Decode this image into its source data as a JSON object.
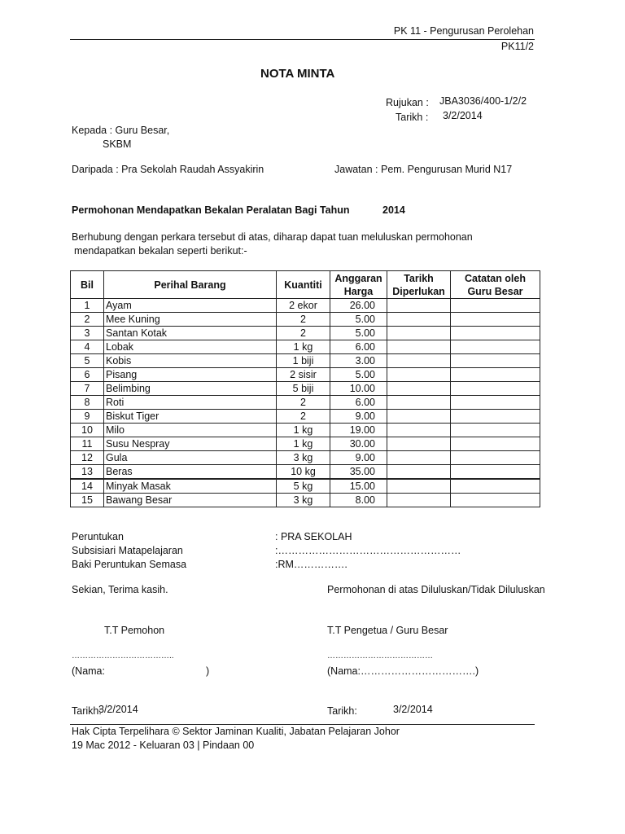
{
  "header": {
    "line1": "PK 11 - Pengurusan Perolehan",
    "line2": "PK11/2"
  },
  "title": "NOTA MINTA",
  "ref": {
    "rujukan_label": "Rujukan :",
    "rujukan": "JBA3036/400-1/2/2",
    "tarikh_label": "Tarikh :",
    "tarikh": "3/2/2014"
  },
  "kepada": {
    "line1": "Kepada : Guru Besar,",
    "line2": "SKBM"
  },
  "daripada": "Daripada : Pra Sekolah Raudah Assyakirin",
  "jawatan": "Jawatan : Pem. Pengurusan Murid N17",
  "subject": {
    "text": "Permohonan Mendapatkan Bekalan Peralatan Bagi Tahun",
    "year": "2014"
  },
  "intro": {
    "line1": "Berhubung dengan perkara tersebut di atas, diharap dapat tuan meluluskan permohonan",
    "line2": "mendapatkan bekalan seperti berikut:-"
  },
  "table": {
    "headers": {
      "bil": "Bil",
      "perihal": "Perihal Barang",
      "kuantiti": "Kuantiti",
      "anggaran1": "Anggaran",
      "anggaran2": "Harga",
      "tarikh1": "Tarikh",
      "tarikh2": "Diperlukan",
      "catatan1": "Catatan oleh",
      "catatan2": "Guru Besar"
    },
    "rows": [
      [
        "1",
        "Ayam",
        "2 ekor",
        "26.00"
      ],
      [
        "2",
        "Mee Kuning",
        "2",
        "5.00"
      ],
      [
        "3",
        "Santan Kotak",
        "2",
        "5.00"
      ],
      [
        "4",
        "Lobak",
        "1 kg",
        "6.00"
      ],
      [
        "5",
        "Kobis",
        "1 biji",
        "3.00"
      ],
      [
        "6",
        "Pisang",
        "2 sisir",
        "5.00"
      ],
      [
        "7",
        "Belimbing",
        "5 biji",
        "10.00"
      ],
      [
        "8",
        "Roti",
        "2",
        "6.00"
      ],
      [
        "9",
        "Biskut Tiger",
        "2",
        "9.00"
      ],
      [
        "10",
        "Milo",
        "1 kg",
        "19.00"
      ],
      [
        "11",
        "Susu Nespray",
        "1 kg",
        "30.00"
      ],
      [
        "12",
        "Gula",
        "3 kg",
        "9.00"
      ],
      [
        "13",
        "Beras",
        "10 kg",
        "35.00"
      ],
      [
        "14",
        "Minyak Masak",
        "5 kg",
        "15.00"
      ],
      [
        "15",
        "Bawang Besar",
        "3 kg",
        "8.00"
      ]
    ]
  },
  "peruntukan": {
    "label1": "Peruntukan",
    "value1": ": PRA SEKOLAH",
    "label2": "Subsisiari Matapelajaran",
    "value2": ":………………………………………………",
    "label3": "Baki Peruntukan Semasa",
    "value3": ":RM……………."
  },
  "closing": {
    "left": "Sekian, Terima kasih.",
    "right": "Permohonan di atas Diluluskan/Tidak Diluluskan"
  },
  "sign": {
    "left_title": "T.T Pemohon",
    "right_title": "T.T Pengetua / Guru Besar",
    "left_dots": "………………………………..",
    "right_dots": "…………………………………",
    "left_nama": "(Nama:",
    "left_close": ")",
    "right_nama": "(Nama:…………………………….)",
    "left_tarikh_label": "Tarikh:",
    "left_tarikh": "3/2/2014",
    "right_tarikh_label": "Tarikh:",
    "right_tarikh": "3/2/2014"
  },
  "footer": {
    "line1": "Hak Cipta Terpelihara © Sektor Jaminan Kualiti, Jabatan Pelajaran Johor",
    "line2": "19 Mac 2012 - Keluaran 03 | Pindaan 00"
  }
}
